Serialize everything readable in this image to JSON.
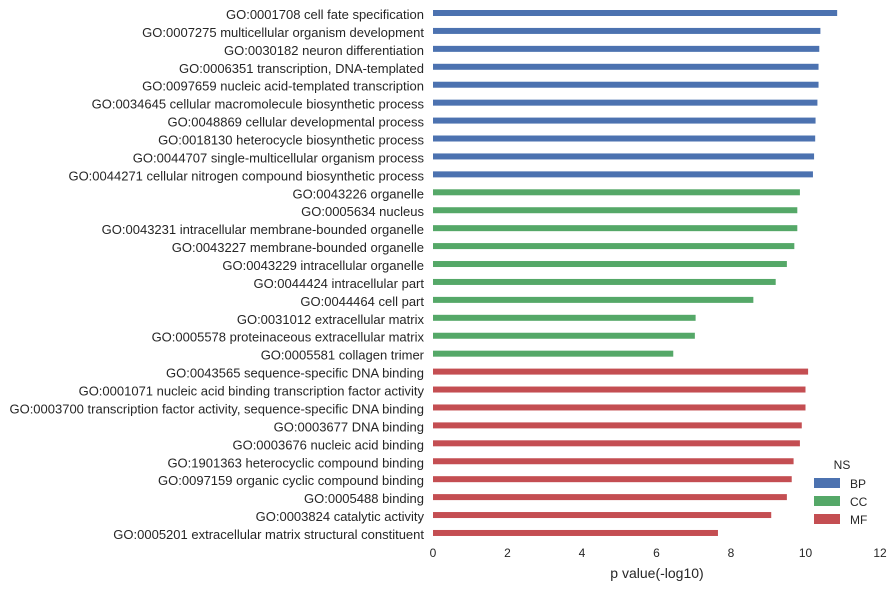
{
  "chart_data": {
    "type": "bar",
    "orientation": "horizontal",
    "xlabel": "p value(-log10)",
    "ylabel": "",
    "xlim": [
      0,
      12
    ],
    "xticks": [
      0,
      2,
      4,
      6,
      8,
      10,
      12
    ],
    "grid": false,
    "legend": {
      "title": "NS",
      "placement": "lower-right",
      "entries": [
        {
          "name": "BP",
          "color": "#4c72b0"
        },
        {
          "name": "CC",
          "color": "#55a868"
        },
        {
          "name": "MF",
          "color": "#c44e52"
        }
      ]
    },
    "categories": [
      "GO:0001708 cell fate specification",
      "GO:0007275 multicellular organism development",
      "GO:0030182 neuron differentiation",
      "GO:0006351 transcription, DNA-templated",
      "GO:0097659 nucleic acid-templated transcription",
      "GO:0034645 cellular macromolecule biosynthetic process",
      "GO:0048869 cellular developmental process",
      "GO:0018130 heterocycle biosynthetic process",
      "GO:0044707 single-multicellular organism process",
      "GO:0044271 cellular nitrogen compound biosynthetic process",
      "GO:0043226 organelle",
      "GO:0005634 nucleus",
      "GO:0043231 intracellular membrane-bounded organelle",
      "GO:0043227 membrane-bounded organelle",
      "GO:0043229 intracellular organelle",
      "GO:0044424 intracellular part",
      "GO:0044464 cell part",
      "GO:0031012 extracellular matrix",
      "GO:0005578 proteinaceous extracellular matrix",
      "GO:0005581 collagen trimer",
      "GO:0043565 sequence-specific DNA binding",
      "GO:0001071 nucleic acid binding transcription factor activity",
      "GO:0003700 transcription factor activity, sequence-specific DNA binding",
      "GO:0003677 DNA binding",
      "GO:0003676 nucleic acid binding",
      "GO:1901363 heterocyclic compound binding",
      "GO:0097159 organic cyclic compound binding",
      "GO:0005488 binding",
      "GO:0003824 catalytic activity",
      "GO:0005201 extracellular matrix structural constituent"
    ],
    "series": [
      {
        "name": "BP",
        "color": "#4c72b0",
        "values": [
          10.85,
          10.4,
          10.37,
          10.35,
          10.35,
          10.32,
          10.27,
          10.26,
          10.23,
          10.2,
          null,
          null,
          null,
          null,
          null,
          null,
          null,
          null,
          null,
          null,
          null,
          null,
          null,
          null,
          null,
          null,
          null,
          null,
          null,
          null
        ]
      },
      {
        "name": "CC",
        "color": "#55a868",
        "values": [
          null,
          null,
          null,
          null,
          null,
          null,
          null,
          null,
          null,
          null,
          9.85,
          9.78,
          9.78,
          9.7,
          9.5,
          9.2,
          8.6,
          7.05,
          7.03,
          6.45,
          null,
          null,
          null,
          null,
          null,
          null,
          null,
          null,
          null,
          null
        ]
      },
      {
        "name": "MF",
        "color": "#c44e52",
        "values": [
          null,
          null,
          null,
          null,
          null,
          null,
          null,
          null,
          null,
          null,
          null,
          null,
          null,
          null,
          null,
          null,
          null,
          null,
          null,
          null,
          10.07,
          10.0,
          10.0,
          9.9,
          9.85,
          9.68,
          9.63,
          9.5,
          9.08,
          7.65
        ]
      }
    ]
  }
}
